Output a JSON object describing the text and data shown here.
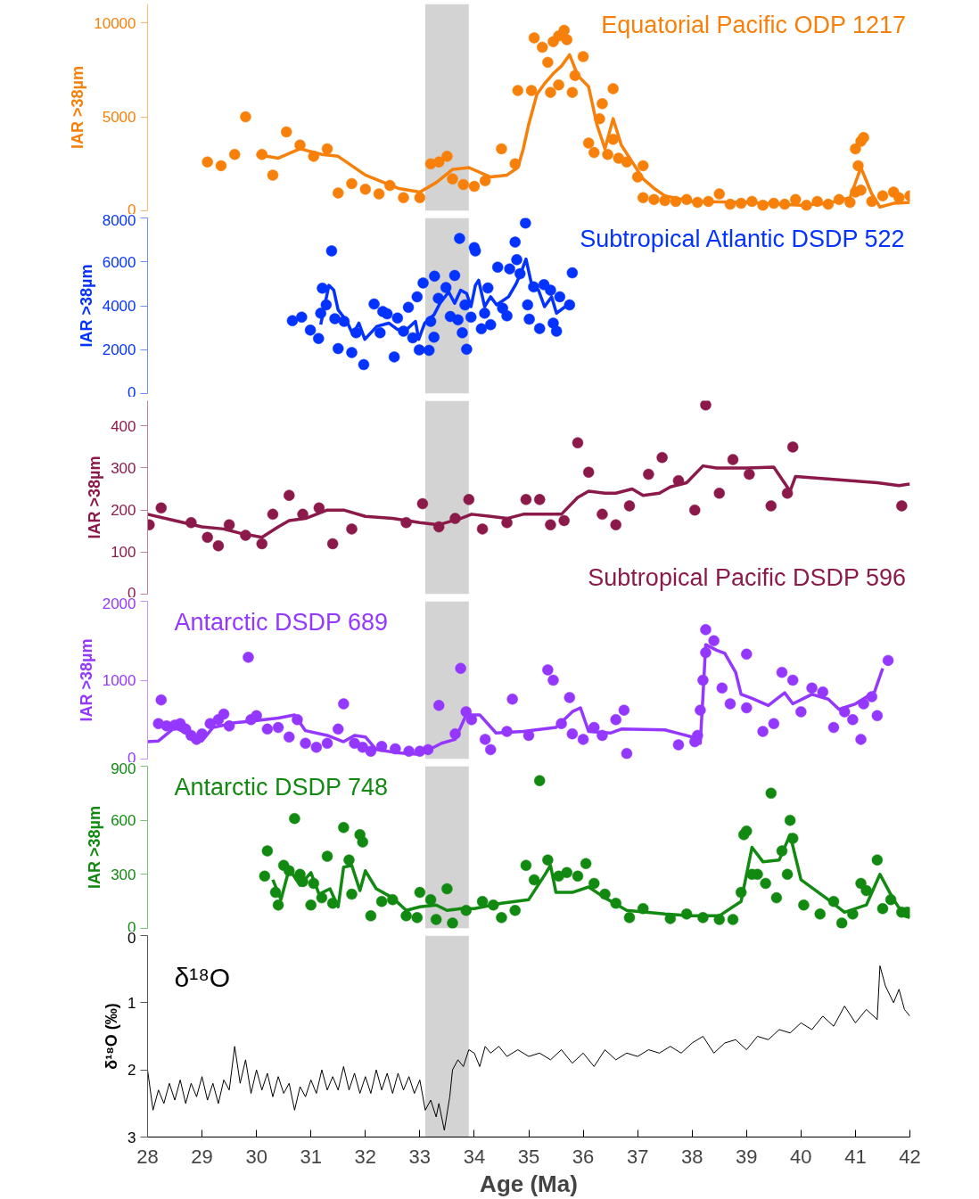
{
  "chart_data": [
    {
      "type": "scatter",
      "ylabel": "IAR >38µm",
      "xlim": [
        28,
        42
      ],
      "ylim": [
        0,
        11000
      ],
      "yticks": [
        0,
        5000,
        10000
      ],
      "tick_labels": "y",
      "bands": [
        {
          "axis": "x",
          "from": 33.1,
          "to": 33.9,
          "color": "#d3d3d3"
        }
      ],
      "series": [
        {
          "name": "Equatorial Pacific ODP 1217",
          "type": "scatter",
          "marker": "circle",
          "color": "#f7800a",
          "x": [
            29.1,
            29.35,
            29.6,
            29.8,
            30.1,
            30.3,
            30.55,
            30.8,
            31.05,
            31.3,
            31.5,
            31.75,
            32.0,
            32.25,
            32.45,
            32.7,
            33.0,
            33.2,
            33.35,
            33.5,
            33.6,
            33.8,
            34.0,
            34.2,
            34.5,
            34.75,
            34.8,
            35.05,
            35.1,
            35.25,
            35.35,
            35.4,
            35.45,
            35.55,
            35.55,
            35.65,
            35.7,
            35.8,
            35.85,
            36.0,
            36.1,
            36.2,
            36.3,
            36.35,
            36.45,
            36.55,
            36.55,
            36.65,
            36.8,
            37.0,
            37.1,
            37.1,
            37.3,
            37.5,
            37.7,
            37.9,
            38.1,
            38.3,
            38.5,
            38.7,
            38.9,
            39.1,
            39.3,
            39.5,
            39.7,
            39.9,
            40.1,
            40.3,
            40.5,
            40.7,
            40.9,
            41.0,
            41.0,
            41.05,
            41.1,
            41.1,
            41.15,
            41.3,
            41.5,
            41.7,
            41.8,
            42.0
          ],
          "values": [
            2600,
            2400,
            3000,
            5000,
            3000,
            1900,
            4200,
            3500,
            2900,
            3300,
            950,
            1450,
            1150,
            900,
            1350,
            700,
            700,
            2500,
            2600,
            2900,
            1700,
            1400,
            1300,
            1600,
            3300,
            2500,
            6400,
            6400,
            9200,
            8700,
            7900,
            6300,
            9000,
            9300,
            6700,
            9600,
            9100,
            6300,
            7200,
            8200,
            3600,
            3100,
            4900,
            5700,
            3000,
            6500,
            3800,
            2800,
            2600,
            1800,
            2400,
            700,
            600,
            550,
            500,
            600,
            450,
            500,
            900,
            350,
            400,
            500,
            300,
            400,
            350,
            600,
            300,
            500,
            350,
            600,
            450,
            1000,
            3300,
            2400,
            1100,
            3700,
            3900,
            500,
            800,
            1000,
            700,
            800
          ]
        },
        {
          "type": "line",
          "color": "#f7800a",
          "x": [
            30.0,
            30.4,
            30.8,
            31.2,
            31.5,
            32.0,
            32.6,
            33.0,
            33.3,
            33.6,
            33.9,
            34.3,
            34.6,
            34.8,
            34.9,
            35.0,
            35.15,
            35.3,
            35.45,
            35.6,
            35.75,
            35.9,
            36.1,
            36.25,
            36.4,
            36.55,
            36.7,
            36.9,
            37.1,
            37.3,
            37.5,
            38.0,
            39.0,
            40.0,
            40.5,
            40.9,
            41.1,
            41.3,
            41.45,
            41.7,
            42.0
          ],
          "values": [
            3000,
            2800,
            3300,
            3000,
            2900,
            1900,
            1200,
            1000,
            1500,
            2200,
            2300,
            1800,
            1900,
            2300,
            3300,
            4600,
            6200,
            6800,
            7300,
            7700,
            8300,
            7200,
            6600,
            4600,
            3300,
            4900,
            3500,
            2600,
            1700,
            1200,
            800,
            500,
            450,
            300,
            400,
            700,
            2300,
            900,
            200,
            400,
            450
          ]
        }
      ]
    },
    {
      "type": "scatter",
      "ylabel": "IAR >38µm",
      "xlim": [
        28,
        42
      ],
      "ylim": [
        0,
        8000
      ],
      "yticks": [
        0,
        2000,
        4000,
        6000,
        8000
      ],
      "tick_labels": "y",
      "bands": [
        {
          "axis": "x",
          "from": 33.1,
          "to": 33.9,
          "color": "#d3d3d3"
        }
      ],
      "series": [
        {
          "name": "Subtropical Atlantic DSDP 522",
          "type": "scatter",
          "marker": "circle",
          "color": "#0433ff",
          "x": [
            30.66,
            30.83,
            30.99,
            31.14,
            31.21,
            31.18,
            31.28,
            31.38,
            31.44,
            31.5,
            31.61,
            31.75,
            31.83,
            31.97,
            32.16,
            32.27,
            32.32,
            32.4,
            32.53,
            32.59,
            32.7,
            32.79,
            32.87,
            32.95,
            32.99,
            33.06,
            33.17,
            33.2,
            33.26,
            33.27,
            33.34,
            33.48,
            33.56,
            33.64,
            33.7,
            33.73,
            33.78,
            33.83,
            33.86,
            33.94,
            34.0,
            34.02,
            34.13,
            34.19,
            34.25,
            34.3,
            34.43,
            34.52,
            34.6,
            34.65,
            34.75,
            34.78,
            34.84,
            34.94,
            34.98,
            35.01,
            35.09,
            35.2,
            35.28,
            35.4,
            35.45,
            35.51,
            35.57,
            35.75,
            35.8
          ],
          "values": [
            3320,
            3480,
            2890,
            2510,
            4800,
            3660,
            4040,
            6500,
            3410,
            2050,
            3290,
            1870,
            2770,
            1320,
            4080,
            2770,
            3740,
            3630,
            1670,
            3440,
            2840,
            3930,
            2540,
            4410,
            1990,
            5040,
            1970,
            3290,
            2570,
            5350,
            4340,
            4830,
            3510,
            5380,
            3360,
            7070,
            2770,
            4040,
            2020,
            3480,
            6650,
            6500,
            2950,
            3660,
            4810,
            3140,
            5760,
            3890,
            3540,
            5680,
            6900,
            6100,
            5460,
            7770,
            4040,
            3390,
            4860,
            2960,
            4960,
            4710,
            3210,
            2840,
            4410,
            4040,
            5500
          ]
        },
        {
          "type": "line",
          "color": "#0433ff",
          "x": [
            31.18,
            31.33,
            31.42,
            31.5,
            31.66,
            31.77,
            31.88,
            31.99,
            32.21,
            32.43,
            32.59,
            32.76,
            32.92,
            32.98,
            33.09,
            33.26,
            33.37,
            33.53,
            33.64,
            33.75,
            33.86,
            33.94,
            34.02,
            34.08,
            34.19,
            34.3,
            34.41,
            34.63,
            34.77,
            34.85,
            34.95,
            35.07,
            35.18,
            35.29,
            35.42,
            35.51,
            35.67,
            35.78
          ],
          "values": [
            3140,
            4930,
            4710,
            3810,
            3290,
            2690,
            3210,
            2470,
            3060,
            3210,
            2920,
            2920,
            3290,
            2470,
            3210,
            3590,
            4110,
            4630,
            4110,
            4710,
            4560,
            3960,
            4930,
            5160,
            3960,
            4410,
            4040,
            4410,
            5010,
            5460,
            6130,
            4780,
            4710,
            3960,
            4410,
            3660,
            3960,
            3890
          ]
        }
      ]
    },
    {
      "type": "scatter",
      "ylabel": "IAR >38µm",
      "xlim": [
        28,
        42
      ],
      "ylim": [
        0,
        460
      ],
      "yticks": [
        0,
        100,
        200,
        300,
        400
      ],
      "tick_labels": "y",
      "bands": [
        {
          "axis": "x",
          "from": 33.1,
          "to": 33.9,
          "color": "#d3d3d3"
        }
      ],
      "series": [
        {
          "name": "Subtropical Pacific DSDP 596",
          "type": "scatter",
          "marker": "circle",
          "color": "#8b1a4a",
          "x": [
            28.03,
            28.25,
            28.8,
            29.1,
            29.3,
            29.5,
            29.8,
            30.1,
            30.3,
            30.6,
            30.85,
            31.15,
            31.4,
            31.75,
            32.75,
            33.05,
            33.35,
            33.65,
            33.9,
            34.15,
            34.6,
            34.95,
            35.2,
            35.4,
            35.65,
            35.9,
            36.1,
            36.35,
            36.6,
            36.85,
            37.2,
            37.45,
            37.75,
            38.05,
            38.25,
            38.5,
            38.75,
            39.05,
            39.45,
            39.75,
            39.85,
            41.85
          ],
          "values": [
            165,
            205,
            170,
            135,
            115,
            165,
            140,
            120,
            190,
            235,
            190,
            205,
            120,
            155,
            170,
            215,
            160,
            180,
            225,
            155,
            170,
            225,
            225,
            165,
            175,
            360,
            290,
            190,
            165,
            210,
            285,
            325,
            270,
            200,
            450,
            240,
            320,
            285,
            210,
            240,
            350,
            210
          ]
        },
        {
          "type": "line",
          "color": "#8b1a4a",
          "x": [
            28.0,
            28.5,
            29.0,
            29.4,
            29.7,
            30.1,
            30.4,
            30.6,
            30.9,
            31.3,
            31.6,
            32.0,
            32.5,
            33.0,
            33.35,
            33.75,
            33.95,
            34.3,
            34.6,
            34.9,
            35.3,
            35.6,
            35.9,
            36.1,
            36.4,
            36.6,
            36.9,
            37.1,
            37.4,
            37.6,
            37.9,
            38.2,
            38.45,
            39.0,
            39.5,
            39.8,
            39.9,
            41.4,
            41.8,
            42.0
          ],
          "values": [
            190,
            175,
            160,
            155,
            145,
            135,
            160,
            175,
            180,
            200,
            200,
            185,
            180,
            170,
            165,
            180,
            190,
            185,
            180,
            190,
            190,
            190,
            230,
            245,
            240,
            240,
            250,
            235,
            240,
            255,
            265,
            305,
            300,
            300,
            302,
            245,
            280,
            265,
            258,
            262
          ]
        }
      ]
    },
    {
      "type": "scatter",
      "ylabel": "IAR >38µm",
      "xlim": [
        28,
        42
      ],
      "ylim": [
        0,
        2000
      ],
      "yticks": [
        0,
        1000,
        2000
      ],
      "tick_labels": "y",
      "bands": [
        {
          "axis": "x",
          "from": 33.1,
          "to": 33.9,
          "color": "#d3d3d3"
        }
      ],
      "series": [
        {
          "name": "Antarctic DSDP 689",
          "type": "scatter",
          "marker": "circle",
          "color": "#9437ff",
          "x": [
            28.2,
            28.25,
            28.35,
            28.5,
            28.6,
            28.7,
            28.8,
            28.9,
            29.0,
            29.15,
            29.3,
            29.4,
            29.5,
            29.85,
            29.9,
            30.0,
            30.2,
            30.4,
            30.6,
            30.75,
            30.9,
            31.1,
            31.3,
            31.5,
            31.6,
            31.8,
            31.95,
            32.1,
            32.3,
            32.55,
            32.8,
            33.0,
            33.15,
            33.35,
            33.65,
            33.75,
            33.85,
            33.95,
            34.2,
            34.3,
            34.6,
            34.7,
            35.0,
            35.35,
            35.45,
            35.6,
            35.75,
            35.8,
            36.0,
            36.2,
            36.35,
            36.6,
            36.75,
            36.8,
            37.75,
            38.05,
            38.1,
            38.15,
            38.2,
            38.25,
            38.25,
            38.4,
            38.55,
            38.7,
            39.0,
            39.0,
            39.3,
            39.5,
            39.65,
            39.85,
            40.0,
            40.2,
            40.4,
            40.6,
            40.8,
            40.95,
            41.1,
            41.15,
            41.3,
            41.4,
            41.6
          ],
          "values": [
            450,
            750,
            420,
            430,
            450,
            380,
            300,
            250,
            320,
            450,
            500,
            570,
            420,
            1290,
            500,
            550,
            380,
            400,
            280,
            500,
            200,
            150,
            200,
            380,
            700,
            200,
            150,
            100,
            160,
            130,
            100,
            100,
            120,
            680,
            320,
            1150,
            600,
            500,
            250,
            120,
            350,
            760,
            300,
            1130,
            1000,
            450,
            780,
            320,
            250,
            400,
            300,
            500,
            620,
            70,
            180,
            220,
            300,
            620,
            1000,
            1350,
            1640,
            1500,
            900,
            700,
            1330,
            650,
            350,
            450,
            1100,
            1000,
            600,
            900,
            850,
            400,
            600,
            500,
            250,
            700,
            790,
            550,
            1250
          ]
        },
        {
          "type": "line",
          "color": "#9437ff",
          "x": [
            28.0,
            28.2,
            28.5,
            28.8,
            29.0,
            29.2,
            29.6,
            29.9,
            30.4,
            30.7,
            30.9,
            31.3,
            31.6,
            31.8,
            32.0,
            32.2,
            32.6,
            33.0,
            33.4,
            33.65,
            33.85,
            34.1,
            34.4,
            34.9,
            35.5,
            35.8,
            35.95,
            36.1,
            36.5,
            36.7,
            37.5,
            38.0,
            38.15,
            38.2,
            38.25,
            38.45,
            38.6,
            38.8,
            38.9,
            39.1,
            39.4,
            39.7,
            39.85,
            40.2,
            40.5,
            40.7,
            41.0,
            41.35,
            41.5
          ],
          "values": [
            220,
            230,
            400,
            300,
            230,
            400,
            460,
            480,
            520,
            560,
            360,
            300,
            220,
            300,
            280,
            120,
            80,
            60,
            200,
            250,
            560,
            560,
            330,
            350,
            400,
            600,
            650,
            350,
            330,
            380,
            370,
            280,
            200,
            800,
            1450,
            1380,
            1340,
            1100,
            820,
            770,
            680,
            840,
            700,
            820,
            760,
            630,
            700,
            850,
            1150
          ]
        }
      ]
    },
    {
      "type": "scatter",
      "ylabel": "IAR >38µm",
      "xlim": [
        28,
        42
      ],
      "ylim": [
        0,
        900
      ],
      "yticks": [
        0,
        300,
        600,
        900
      ],
      "tick_labels": "y",
      "bands": [
        {
          "axis": "x",
          "from": 33.1,
          "to": 33.9,
          "color": "#d3d3d3"
        }
      ],
      "series": [
        {
          "name": "Antarctic DSDP 748",
          "type": "scatter",
          "marker": "circle",
          "color": "#128a12",
          "x": [
            30.15,
            30.2,
            30.35,
            30.4,
            30.5,
            30.6,
            30.7,
            30.8,
            30.85,
            31.0,
            31.05,
            31.2,
            31.3,
            31.4,
            31.6,
            31.7,
            31.75,
            31.9,
            31.95,
            32.1,
            32.3,
            32.5,
            32.75,
            32.95,
            33.0,
            33.2,
            33.3,
            33.5,
            33.6,
            33.85,
            34.15,
            34.35,
            34.5,
            34.75,
            34.95,
            35.1,
            35.2,
            35.35,
            35.55,
            35.7,
            35.9,
            36.05,
            36.2,
            36.4,
            36.6,
            36.85,
            37.1,
            37.6,
            37.9,
            38.2,
            38.5,
            38.75,
            38.9,
            38.95,
            39.0,
            39.1,
            39.2,
            39.35,
            39.45,
            39.55,
            39.65,
            39.75,
            39.8,
            39.85,
            40.05,
            40.35,
            40.6,
            40.75,
            40.95,
            41.1,
            41.2,
            41.4,
            41.5,
            41.65,
            41.85,
            41.95
          ],
          "values": [
            290,
            430,
            200,
            130,
            350,
            320,
            610,
            300,
            260,
            130,
            250,
            170,
            400,
            140,
            560,
            380,
            190,
            520,
            480,
            70,
            150,
            160,
            70,
            60,
            200,
            160,
            50,
            220,
            30,
            100,
            150,
            130,
            60,
            100,
            350,
            270,
            820,
            380,
            290,
            310,
            290,
            360,
            250,
            190,
            140,
            60,
            110,
            55,
            80,
            60,
            50,
            50,
            200,
            520,
            540,
            300,
            300,
            250,
            750,
            170,
            430,
            300,
            600,
            500,
            130,
            80,
            150,
            30,
            80,
            250,
            210,
            380,
            110,
            160,
            90,
            90
          ]
        },
        {
          "type": "line",
          "color": "#128a12",
          "x": [
            30.3,
            30.45,
            30.6,
            30.8,
            31.0,
            31.15,
            31.35,
            31.5,
            31.6,
            31.75,
            31.9,
            32.0,
            32.2,
            32.5,
            32.75,
            33.0,
            33.3,
            33.5,
            33.75,
            34.0,
            34.5,
            35.0,
            35.3,
            35.4,
            35.5,
            35.8,
            36.1,
            36.4,
            36.8,
            37.5,
            38.0,
            38.5,
            38.9,
            39.1,
            39.3,
            39.6,
            39.8,
            40.0,
            40.5,
            40.8,
            41.2,
            41.45,
            41.7,
            41.9,
            42.0
          ],
          "values": [
            270,
            160,
            330,
            240,
            310,
            190,
            220,
            120,
            340,
            350,
            210,
            320,
            220,
            170,
            100,
            120,
            130,
            100,
            110,
            110,
            140,
            160,
            300,
            350,
            200,
            200,
            230,
            170,
            100,
            80,
            70,
            70,
            150,
            450,
            370,
            380,
            520,
            270,
            160,
            90,
            130,
            300,
            160,
            70,
            60
          ]
        }
      ]
    },
    {
      "type": "line",
      "ylabel": "δ¹⁸O (‰)",
      "xlabel": "Age (Ma)",
      "xlim": [
        28,
        42
      ],
      "ylim": [
        3,
        0
      ],
      "xticks": [
        28,
        29,
        30,
        31,
        32,
        33,
        34,
        35,
        36,
        37,
        38,
        39,
        40,
        41,
        42
      ],
      "yticks": [
        0,
        1,
        2,
        3
      ],
      "bands": [
        {
          "axis": "x",
          "from": 33.1,
          "to": 33.9,
          "color": "#d3d3d3"
        }
      ],
      "series": [
        {
          "name": "δ¹⁸O",
          "type": "line",
          "color": "#000000",
          "x": [
            28.0,
            28.1,
            28.2,
            28.3,
            28.4,
            28.5,
            28.6,
            28.7,
            28.8,
            28.9,
            29.0,
            29.1,
            29.2,
            29.3,
            29.4,
            29.5,
            29.6,
            29.7,
            29.8,
            29.9,
            30.0,
            30.1,
            30.2,
            30.3,
            30.4,
            30.5,
            30.6,
            30.7,
            30.8,
            30.9,
            31.0,
            31.1,
            31.2,
            31.3,
            31.4,
            31.5,
            31.6,
            31.7,
            31.8,
            31.9,
            32.0,
            32.1,
            32.2,
            32.3,
            32.4,
            32.5,
            32.6,
            32.7,
            32.8,
            32.9,
            33.0,
            33.1,
            33.2,
            33.3,
            33.35,
            33.45,
            33.55,
            33.6,
            33.7,
            33.8,
            33.9,
            34.0,
            34.1,
            34.2,
            34.3,
            34.45,
            34.6,
            34.8,
            35.0,
            35.2,
            35.4,
            35.6,
            35.8,
            36.0,
            36.2,
            36.4,
            36.6,
            36.8,
            37.0,
            37.2,
            37.4,
            37.6,
            37.8,
            38.0,
            38.2,
            38.4,
            38.6,
            38.8,
            39.0,
            39.2,
            39.4,
            39.6,
            39.8,
            40.0,
            40.2,
            40.4,
            40.6,
            40.8,
            41.0,
            41.2,
            41.4,
            41.45,
            41.55,
            41.7,
            41.8,
            41.9,
            42.0
          ],
          "values": [
            2.0,
            2.6,
            2.3,
            2.5,
            2.2,
            2.45,
            2.15,
            2.5,
            2.2,
            2.4,
            2.1,
            2.45,
            2.2,
            2.5,
            2.15,
            2.3,
            1.65,
            2.2,
            1.85,
            2.35,
            2.0,
            2.3,
            2.05,
            2.4,
            2.1,
            2.35,
            2.2,
            2.6,
            2.25,
            2.4,
            2.15,
            2.35,
            2.0,
            2.3,
            2.1,
            2.3,
            1.95,
            2.3,
            2.05,
            2.35,
            2.1,
            2.35,
            2.0,
            2.3,
            2.05,
            2.35,
            2.05,
            2.3,
            2.1,
            2.35,
            2.15,
            2.6,
            2.45,
            2.7,
            2.5,
            2.9,
            2.4,
            2.0,
            1.85,
            1.95,
            1.7,
            1.75,
            1.95,
            1.65,
            1.75,
            1.65,
            1.8,
            1.7,
            1.8,
            1.75,
            1.85,
            1.7,
            1.9,
            1.75,
            1.95,
            1.7,
            1.85,
            1.75,
            1.8,
            1.7,
            1.75,
            1.65,
            1.75,
            1.6,
            1.5,
            1.75,
            1.6,
            1.55,
            1.7,
            1.5,
            1.55,
            1.4,
            1.45,
            1.3,
            1.4,
            1.2,
            1.35,
            1.05,
            1.3,
            1.1,
            1.25,
            0.45,
            0.75,
            1.0,
            0.8,
            1.1,
            1.2
          ]
        }
      ]
    }
  ]
}
